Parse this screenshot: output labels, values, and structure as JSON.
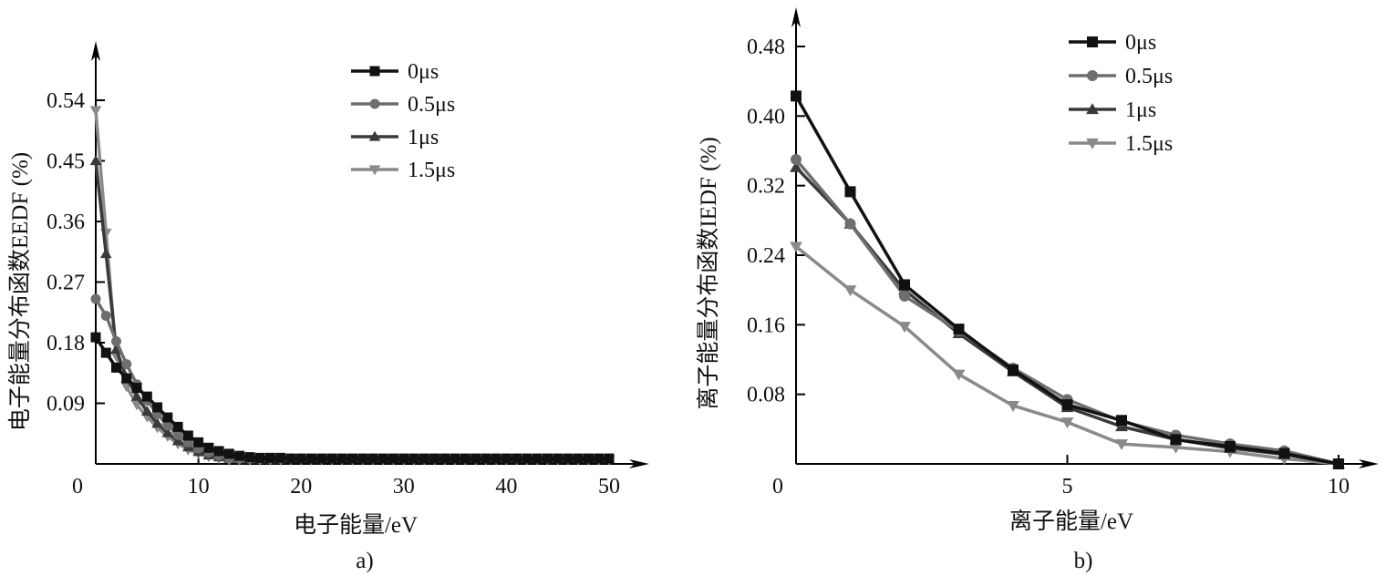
{
  "chart_data": [
    {
      "id": "a",
      "type": "line",
      "panel_label": "a)",
      "title": "",
      "xlabel": "电子能量/eV",
      "ylabel": "电子能量分布函数EEDF (%)",
      "xlim": [
        0,
        50
      ],
      "ylim": [
        0,
        0.6
      ],
      "xticks": [
        0,
        10,
        20,
        30,
        40,
        50
      ],
      "xtick_labels": [
        "0",
        "10",
        "20",
        "30",
        "40",
        "50"
      ],
      "yticks": [
        0.09,
        0.18,
        0.27,
        0.36,
        0.45,
        0.54
      ],
      "ytick_labels": [
        "0.09",
        "0.18",
        "0.27",
        "0.36",
        "0.45",
        "0.54"
      ],
      "grid": false,
      "legend_position": "top-center",
      "series": [
        {
          "name": "0μs",
          "color": "#111111",
          "marker": "square",
          "x": [
            0,
            1,
            2,
            3,
            4,
            5,
            6,
            7,
            8,
            9,
            10,
            11,
            12,
            13,
            14,
            15,
            16,
            17,
            18,
            19,
            20,
            21,
            22,
            23,
            24,
            25,
            26,
            27,
            28,
            29,
            30,
            31,
            32,
            33,
            34,
            35,
            36,
            37,
            38,
            39,
            40,
            41,
            42,
            43,
            44,
            45,
            46,
            47,
            48,
            49,
            50
          ],
          "y": [
            0.188,
            0.165,
            0.143,
            0.127,
            0.113,
            0.1,
            0.084,
            0.069,
            0.055,
            0.042,
            0.032,
            0.024,
            0.019,
            0.015,
            0.012,
            0.01,
            0.009,
            0.009,
            0.009,
            0.008,
            0.008,
            0.008,
            0.008,
            0.008,
            0.008,
            0.008,
            0.008,
            0.008,
            0.008,
            0.008,
            0.008,
            0.008,
            0.008,
            0.008,
            0.008,
            0.008,
            0.008,
            0.008,
            0.008,
            0.008,
            0.008,
            0.008,
            0.008,
            0.008,
            0.008,
            0.008,
            0.008,
            0.008,
            0.008,
            0.008,
            0.008
          ]
        },
        {
          "name": "0.5μs",
          "color": "#6e6e6e",
          "marker": "circle",
          "x": [
            0,
            1,
            2,
            3,
            4,
            5,
            6,
            7,
            8,
            9,
            10,
            11,
            12,
            13,
            14,
            15,
            16,
            17,
            18,
            19,
            20,
            21,
            22,
            23,
            24,
            25,
            26,
            27,
            28,
            29,
            30,
            31,
            32,
            33,
            34,
            35,
            36,
            37,
            38,
            39,
            40,
            41,
            42,
            43,
            44,
            45,
            46,
            47,
            48,
            49,
            50
          ],
          "y": [
            0.245,
            0.22,
            0.182,
            0.148,
            0.118,
            0.094,
            0.074,
            0.057,
            0.043,
            0.032,
            0.023,
            0.017,
            0.012,
            0.009,
            0.008,
            0.008,
            0.008,
            0.008,
            0.008,
            0.008,
            0.008,
            0.008,
            0.008,
            0.008,
            0.008,
            0.008,
            0.008,
            0.008,
            0.008,
            0.008,
            0.008,
            0.008,
            0.008,
            0.008,
            0.008,
            0.008,
            0.008,
            0.008,
            0.008,
            0.008,
            0.008,
            0.008,
            0.008,
            0.008,
            0.008,
            0.008,
            0.008,
            0.008,
            0.008,
            0.008,
            0.008
          ]
        },
        {
          "name": "1μs",
          "color": "#3a3a3a",
          "marker": "triangle-up",
          "x": [
            0,
            1,
            2,
            3,
            4,
            5,
            6,
            7,
            8,
            9,
            10,
            11,
            12,
            13,
            14,
            15,
            16,
            17,
            18,
            19,
            20,
            21,
            22,
            23,
            24,
            25,
            26,
            27,
            28,
            29,
            30,
            31,
            32,
            33,
            34,
            35,
            36,
            37,
            38,
            39,
            40,
            41,
            42,
            43,
            44,
            45,
            46,
            47,
            48,
            49,
            50
          ],
          "y": [
            0.45,
            0.312,
            0.17,
            0.128,
            0.1,
            0.078,
            0.06,
            0.046,
            0.034,
            0.025,
            0.018,
            0.013,
            0.01,
            0.008,
            0.007,
            0.007,
            0.007,
            0.007,
            0.007,
            0.007,
            0.007,
            0.007,
            0.007,
            0.007,
            0.007,
            0.007,
            0.007,
            0.007,
            0.007,
            0.007,
            0.007,
            0.007,
            0.007,
            0.007,
            0.007,
            0.007,
            0.007,
            0.007,
            0.007,
            0.007,
            0.007,
            0.007,
            0.007,
            0.007,
            0.007,
            0.007,
            0.007,
            0.007,
            0.007,
            0.007,
            0.007
          ]
        },
        {
          "name": "1.5μs",
          "color": "#8a8a8a",
          "marker": "triangle-down",
          "x": [
            0,
            1,
            2,
            3,
            4,
            5,
            6,
            7,
            8,
            9,
            10,
            11,
            12,
            13,
            14,
            15,
            16,
            17,
            18,
            19,
            20,
            21,
            22,
            23,
            24,
            25,
            26,
            27,
            28,
            29,
            30,
            31,
            32,
            33,
            34,
            35,
            36,
            37,
            38,
            39,
            40,
            41,
            42,
            43,
            44,
            45,
            46,
            47,
            48,
            49,
            50
          ],
          "y": [
            0.525,
            0.343,
            0.16,
            0.115,
            0.088,
            0.07,
            0.054,
            0.041,
            0.03,
            0.021,
            0.015,
            0.011,
            0.008,
            0.006,
            0.006,
            0.006,
            0.006,
            0.006,
            0.006,
            0.006,
            0.006,
            0.006,
            0.006,
            0.006,
            0.006,
            0.006,
            0.006,
            0.006,
            0.006,
            0.006,
            0.006,
            0.006,
            0.006,
            0.006,
            0.006,
            0.006,
            0.006,
            0.006,
            0.006,
            0.006,
            0.006,
            0.006,
            0.006,
            0.006,
            0.006,
            0.006,
            0.006,
            0.006,
            0.006,
            0.006,
            0.006
          ]
        }
      ]
    },
    {
      "id": "b",
      "type": "line",
      "panel_label": "b)",
      "title": "",
      "xlabel": "离子能量/eV",
      "ylabel": "离子能量分布函数IEDF (%)",
      "xlim": [
        0,
        10
      ],
      "ylim": [
        0,
        0.52
      ],
      "xticks": [
        0,
        5,
        10
      ],
      "xtick_labels": [
        "0",
        "5",
        "10"
      ],
      "yticks": [
        0.08,
        0.16,
        0.24,
        0.32,
        0.4,
        0.48
      ],
      "ytick_labels": [
        "0.08",
        "0.16",
        "0.24",
        "0.32",
        "0.40",
        "0.48"
      ],
      "grid": false,
      "legend_position": "top-center",
      "series": [
        {
          "name": "0μs",
          "color": "#111111",
          "marker": "square",
          "x": [
            0,
            1,
            2,
            3,
            4,
            5,
            6,
            7,
            8,
            9,
            10
          ],
          "y": [
            0.423,
            0.313,
            0.206,
            0.155,
            0.108,
            0.068,
            0.05,
            0.028,
            0.02,
            0.012,
            0
          ]
        },
        {
          "name": "0.5μs",
          "color": "#6e6e6e",
          "marker": "circle",
          "x": [
            0,
            1,
            2,
            3,
            4,
            5,
            6,
            7,
            8,
            9,
            10
          ],
          "y": [
            0.35,
            0.276,
            0.193,
            0.153,
            0.11,
            0.074,
            0.049,
            0.033,
            0.023,
            0.015,
            0
          ]
        },
        {
          "name": "1μs",
          "color": "#3a3a3a",
          "marker": "triangle-up",
          "x": [
            0,
            1,
            2,
            3,
            4,
            5,
            6,
            7,
            8,
            9,
            10
          ],
          "y": [
            0.341,
            0.276,
            0.2,
            0.15,
            0.106,
            0.065,
            0.043,
            0.028,
            0.018,
            0.011,
            0
          ]
        },
        {
          "name": "1.5μs",
          "color": "#8a8a8a",
          "marker": "triangle-down",
          "x": [
            0,
            1,
            2,
            3,
            4,
            5,
            6,
            7,
            8,
            9,
            10
          ],
          "y": [
            0.25,
            0.2,
            0.158,
            0.103,
            0.067,
            0.048,
            0.023,
            0.019,
            0.014,
            0.006,
            0
          ]
        }
      ]
    }
  ]
}
